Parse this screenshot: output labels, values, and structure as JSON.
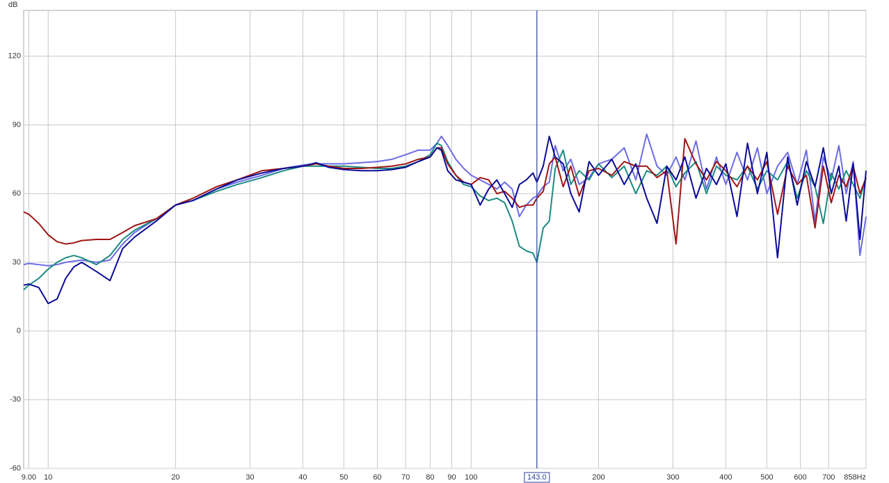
{
  "chart_data": {
    "type": "line",
    "y_label": "dB",
    "xscale": "log",
    "grid": true,
    "xlim": [
      8.75,
      858
    ],
    "ylim": [
      -60,
      140
    ],
    "xticks": [
      {
        "value": 9,
        "label": "9.00"
      },
      10,
      20,
      30,
      40,
      50,
      60,
      70,
      80,
      90,
      100,
      200,
      300,
      400,
      500,
      600,
      700,
      {
        "value": 858,
        "label": "858Hz"
      }
    ],
    "yticks": [
      -60,
      -30,
      0,
      30,
      60,
      90,
      120
    ],
    "cursor": {
      "value": 143,
      "label": "143.0",
      "color": "#2a3f9e"
    },
    "x": [
      8.75,
      9,
      9.5,
      10,
      10.5,
      11,
      11.5,
      12,
      13,
      14,
      15,
      16,
      18,
      20,
      22,
      25,
      28,
      32,
      36,
      40,
      43,
      46,
      50,
      55,
      60,
      65,
      70,
      75,
      80,
      83,
      85,
      88,
      92,
      96,
      100,
      105,
      110,
      115,
      120,
      125,
      130,
      135,
      140,
      143,
      148,
      153,
      158,
      165,
      172,
      180,
      190,
      200,
      215,
      230,
      245,
      260,
      275,
      290,
      305,
      320,
      340,
      360,
      380,
      400,
      425,
      450,
      475,
      500,
      530,
      560,
      590,
      620,
      650,
      680,
      710,
      740,
      770,
      800,
      830,
      858
    ],
    "series": [
      {
        "color": "#6b6be6",
        "values": [
          29,
          29.5,
          29,
          28.5,
          29,
          30,
          30.5,
          31,
          30,
          31,
          38,
          43,
          49,
          55,
          57,
          62,
          65,
          68,
          71,
          72.5,
          73,
          73,
          73,
          73.5,
          74,
          75,
          77,
          79,
          79,
          82,
          85,
          81,
          75,
          71,
          68,
          66,
          64,
          62,
          65,
          62,
          50,
          55,
          58,
          59,
          63,
          65,
          81,
          70,
          75,
          64,
          67,
          73,
          75,
          80,
          66,
          86,
          72,
          68,
          76,
          66,
          83,
          62,
          76,
          64,
          78,
          66,
          80,
          60,
          72,
          78,
          64,
          79,
          48,
          76,
          66,
          81,
          60,
          74,
          33,
          50
        ]
      },
      {
        "color": "#1a8a80",
        "values": [
          18,
          20,
          23,
          27,
          30,
          32,
          33,
          32,
          29,
          33,
          40,
          44,
          49,
          55,
          57,
          61,
          64,
          67,
          70,
          72,
          72,
          72,
          72,
          71.5,
          71,
          71,
          72,
          74,
          77,
          82,
          81,
          74,
          68,
          64,
          63,
          59,
          57,
          58,
          56,
          48,
          37,
          35,
          34,
          30,
          45,
          48,
          71,
          79,
          64,
          70,
          66,
          73,
          67,
          72,
          60,
          70,
          68,
          72,
          63,
          69,
          74,
          60,
          72,
          68,
          66,
          72,
          62,
          70,
          66,
          74,
          58,
          70,
          63,
          47,
          69,
          62,
          70,
          64,
          58,
          67
        ]
      },
      {
        "color": "#a01414",
        "values": [
          52,
          51,
          47,
          42,
          39,
          38,
          38.5,
          39.5,
          40,
          40,
          43,
          46,
          49,
          55,
          58,
          63,
          66,
          70,
          71,
          72,
          73,
          72,
          71,
          71,
          71.5,
          72,
          73,
          75,
          76,
          80,
          80,
          73,
          68,
          65,
          64,
          67,
          66,
          60,
          61,
          58,
          54,
          55,
          55,
          58,
          61,
          73,
          76,
          63,
          72,
          59,
          70,
          71,
          68,
          74,
          72,
          72,
          67,
          70,
          38,
          84,
          73,
          66,
          74,
          70,
          63,
          72,
          66,
          74,
          51,
          72,
          64,
          68,
          45,
          72,
          56,
          68,
          63,
          72,
          60,
          67
        ]
      },
      {
        "color": "#0a0a96",
        "values": [
          20,
          20.5,
          19,
          12,
          14,
          23,
          28,
          30,
          26,
          22,
          36,
          41,
          48,
          55,
          57,
          62,
          66,
          69,
          71,
          72,
          73.5,
          71.5,
          70.5,
          70,
          70,
          70.5,
          71.5,
          74,
          76,
          80,
          79,
          70,
          66,
          65,
          64,
          55,
          62,
          66,
          60,
          54,
          64,
          66,
          69,
          65,
          72,
          85,
          76,
          73,
          60,
          52,
          74,
          68,
          75,
          64,
          73,
          58,
          47,
          72,
          66,
          76,
          58,
          71,
          64,
          73,
          50,
          82,
          60,
          78,
          32,
          76,
          55,
          74,
          63,
          80,
          60,
          72,
          48,
          73,
          40,
          70
        ]
      }
    ]
  }
}
